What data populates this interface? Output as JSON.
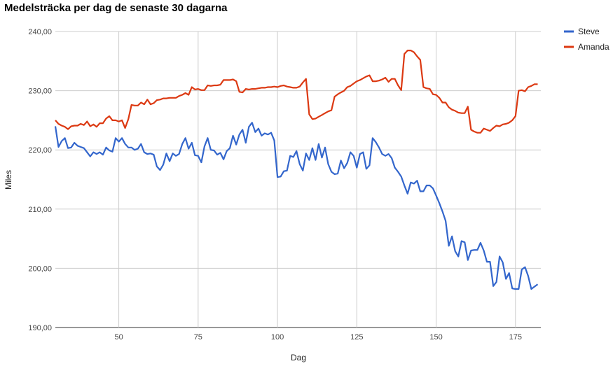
{
  "chart_data": {
    "type": "line",
    "title": "Medelsträcka per dag de senaste 30 dagarna",
    "xlabel": "Dag",
    "ylabel": "Miles",
    "xlim": [
      30,
      183
    ],
    "ylim": [
      190,
      240
    ],
    "x_ticks": [
      50,
      75,
      100,
      125,
      150,
      175
    ],
    "x_tick_labels": [
      "50",
      "75",
      "100",
      "125",
      "150",
      "175"
    ],
    "y_ticks": [
      190,
      200,
      210,
      220,
      230,
      240
    ],
    "y_tick_labels": [
      "190,00",
      "200,00",
      "210,00",
      "220,00",
      "230,00",
      "240,00"
    ],
    "grid": true,
    "legend_position": "right",
    "series": [
      {
        "name": "Steve",
        "color": "#3366cc",
        "points": [
          [
            30,
            224.0
          ],
          [
            31,
            220.5
          ],
          [
            32,
            221.5
          ],
          [
            33,
            222.0
          ],
          [
            34,
            220.3
          ],
          [
            35,
            220.4
          ],
          [
            36,
            221.2
          ],
          [
            37,
            220.7
          ],
          [
            38,
            220.5
          ],
          [
            39,
            220.3
          ],
          [
            40,
            219.6
          ],
          [
            41,
            218.9
          ],
          [
            42,
            219.6
          ],
          [
            43,
            219.3
          ],
          [
            44,
            219.6
          ],
          [
            45,
            219.2
          ],
          [
            46,
            220.4
          ],
          [
            47,
            219.9
          ],
          [
            48,
            219.7
          ],
          [
            49,
            222.0
          ],
          [
            50,
            221.4
          ],
          [
            51,
            222.0
          ],
          [
            52,
            221.0
          ],
          [
            53,
            220.4
          ],
          [
            54,
            220.4
          ],
          [
            55,
            220.0
          ],
          [
            56,
            220.2
          ],
          [
            57,
            221.0
          ],
          [
            58,
            219.6
          ],
          [
            59,
            219.3
          ],
          [
            60,
            219.4
          ],
          [
            61,
            219.2
          ],
          [
            62,
            217.2
          ],
          [
            63,
            216.6
          ],
          [
            64,
            217.5
          ],
          [
            65,
            219.4
          ],
          [
            66,
            218.1
          ],
          [
            67,
            219.4
          ],
          [
            68,
            219.0
          ],
          [
            69,
            219.3
          ],
          [
            70,
            221.0
          ],
          [
            71,
            222.0
          ],
          [
            72,
            220.2
          ],
          [
            73,
            221.2
          ],
          [
            74,
            219.1
          ],
          [
            75,
            219.0
          ],
          [
            76,
            217.9
          ],
          [
            77,
            220.6
          ],
          [
            78,
            222.0
          ],
          [
            79,
            220.0
          ],
          [
            80,
            219.9
          ],
          [
            81,
            219.2
          ],
          [
            82,
            219.5
          ],
          [
            83,
            218.4
          ],
          [
            84,
            219.8
          ],
          [
            85,
            220.3
          ],
          [
            86,
            222.4
          ],
          [
            87,
            220.9
          ],
          [
            88,
            222.6
          ],
          [
            89,
            223.4
          ],
          [
            90,
            221.2
          ],
          [
            91,
            223.9
          ],
          [
            92,
            224.6
          ],
          [
            93,
            223.0
          ],
          [
            94,
            223.6
          ],
          [
            95,
            222.4
          ],
          [
            96,
            222.8
          ],
          [
            97,
            222.6
          ],
          [
            98,
            222.9
          ],
          [
            99,
            221.6
          ],
          [
            100,
            215.4
          ],
          [
            101,
            215.5
          ],
          [
            102,
            216.4
          ],
          [
            103,
            216.5
          ],
          [
            104,
            219.0
          ],
          [
            105,
            218.8
          ],
          [
            106,
            219.8
          ],
          [
            107,
            217.6
          ],
          [
            108,
            216.5
          ],
          [
            109,
            219.4
          ],
          [
            110,
            218.3
          ],
          [
            111,
            220.3
          ],
          [
            112,
            218.3
          ],
          [
            113,
            221.0
          ],
          [
            114,
            218.7
          ],
          [
            115,
            220.4
          ],
          [
            116,
            217.6
          ],
          [
            117,
            216.3
          ],
          [
            118,
            215.9
          ],
          [
            119,
            216.0
          ],
          [
            120,
            218.2
          ],
          [
            121,
            216.9
          ],
          [
            122,
            217.8
          ],
          [
            123,
            219.6
          ],
          [
            124,
            219.0
          ],
          [
            125,
            217.0
          ],
          [
            126,
            219.3
          ],
          [
            127,
            219.6
          ],
          [
            128,
            216.8
          ],
          [
            129,
            217.4
          ],
          [
            130,
            222.0
          ],
          [
            131,
            221.3
          ],
          [
            132,
            220.4
          ],
          [
            133,
            219.3
          ],
          [
            134,
            219.0
          ],
          [
            135,
            219.3
          ],
          [
            136,
            218.6
          ],
          [
            137,
            217.0
          ],
          [
            138,
            216.3
          ],
          [
            139,
            215.5
          ],
          [
            140,
            214.0
          ],
          [
            141,
            212.6
          ],
          [
            142,
            214.5
          ],
          [
            143,
            214.3
          ],
          [
            144,
            214.8
          ],
          [
            145,
            213.0
          ],
          [
            146,
            213.0
          ],
          [
            147,
            214.0
          ],
          [
            148,
            214.0
          ],
          [
            149,
            213.5
          ],
          [
            150,
            212.3
          ],
          [
            151,
            211.0
          ],
          [
            152,
            209.6
          ],
          [
            153,
            208.0
          ],
          [
            154,
            203.8
          ],
          [
            155,
            205.4
          ],
          [
            156,
            202.9
          ],
          [
            157,
            202.0
          ],
          [
            158,
            204.6
          ],
          [
            159,
            204.4
          ],
          [
            160,
            201.4
          ],
          [
            161,
            203.0
          ],
          [
            162,
            203.1
          ],
          [
            163,
            203.1
          ],
          [
            164,
            204.3
          ],
          [
            165,
            203.0
          ],
          [
            166,
            201.1
          ],
          [
            167,
            201.1
          ],
          [
            168,
            197.0
          ],
          [
            169,
            197.7
          ],
          [
            170,
            202.0
          ],
          [
            171,
            201.0
          ],
          [
            172,
            198.2
          ],
          [
            173,
            199.2
          ],
          [
            174,
            196.6
          ],
          [
            175,
            196.5
          ],
          [
            176,
            196.5
          ],
          [
            177,
            199.8
          ],
          [
            178,
            200.2
          ],
          [
            179,
            198.7
          ],
          [
            180,
            196.5
          ],
          [
            181,
            196.9
          ],
          [
            182,
            197.3
          ]
        ]
      },
      {
        "name": "Amanda",
        "color": "#dc3912",
        "points": [
          [
            30,
            225.0
          ],
          [
            31,
            224.4
          ],
          [
            32,
            224.1
          ],
          [
            33,
            223.9
          ],
          [
            34,
            223.5
          ],
          [
            35,
            224.0
          ],
          [
            36,
            224.1
          ],
          [
            37,
            224.1
          ],
          [
            38,
            224.4
          ],
          [
            39,
            224.2
          ],
          [
            40,
            224.8
          ],
          [
            41,
            224.0
          ],
          [
            42,
            224.3
          ],
          [
            43,
            223.9
          ],
          [
            44,
            224.5
          ],
          [
            45,
            224.5
          ],
          [
            46,
            225.3
          ],
          [
            47,
            225.7
          ],
          [
            48,
            225.0
          ],
          [
            49,
            225.0
          ],
          [
            50,
            224.8
          ],
          [
            51,
            225.0
          ],
          [
            52,
            223.7
          ],
          [
            53,
            225.2
          ],
          [
            54,
            227.6
          ],
          [
            55,
            227.5
          ],
          [
            56,
            227.5
          ],
          [
            57,
            228.0
          ],
          [
            58,
            227.7
          ],
          [
            59,
            228.5
          ],
          [
            60,
            227.7
          ],
          [
            61,
            227.9
          ],
          [
            62,
            228.4
          ],
          [
            63,
            228.5
          ],
          [
            64,
            228.7
          ],
          [
            65,
            228.7
          ],
          [
            66,
            228.8
          ],
          [
            67,
            228.8
          ],
          [
            68,
            228.8
          ],
          [
            69,
            229.1
          ],
          [
            70,
            229.3
          ],
          [
            71,
            229.6
          ],
          [
            72,
            229.3
          ],
          [
            73,
            230.6
          ],
          [
            74,
            230.2
          ],
          [
            75,
            230.3
          ],
          [
            76,
            230.1
          ],
          [
            77,
            230.1
          ],
          [
            78,
            230.9
          ],
          [
            79,
            230.8
          ],
          [
            80,
            230.9
          ],
          [
            81,
            230.9
          ],
          [
            82,
            231.0
          ],
          [
            83,
            231.8
          ],
          [
            84,
            231.8
          ],
          [
            85,
            231.8
          ],
          [
            86,
            231.9
          ],
          [
            87,
            231.6
          ],
          [
            88,
            229.8
          ],
          [
            89,
            229.7
          ],
          [
            90,
            230.3
          ],
          [
            91,
            230.2
          ],
          [
            92,
            230.3
          ],
          [
            93,
            230.3
          ],
          [
            94,
            230.4
          ],
          [
            95,
            230.5
          ],
          [
            96,
            230.5
          ],
          [
            97,
            230.6
          ],
          [
            98,
            230.6
          ],
          [
            99,
            230.7
          ],
          [
            100,
            230.6
          ],
          [
            101,
            230.8
          ],
          [
            102,
            230.9
          ],
          [
            103,
            230.7
          ],
          [
            104,
            230.6
          ],
          [
            105,
            230.5
          ],
          [
            106,
            230.5
          ],
          [
            107,
            230.7
          ],
          [
            108,
            231.4
          ],
          [
            109,
            232.0
          ],
          [
            110,
            226.0
          ],
          [
            111,
            225.2
          ],
          [
            112,
            225.3
          ],
          [
            113,
            225.6
          ],
          [
            114,
            225.9
          ],
          [
            115,
            226.2
          ],
          [
            116,
            226.5
          ],
          [
            117,
            226.7
          ],
          [
            118,
            229.0
          ],
          [
            119,
            229.4
          ],
          [
            120,
            229.7
          ],
          [
            121,
            230.0
          ],
          [
            122,
            230.6
          ],
          [
            123,
            230.8
          ],
          [
            124,
            231.2
          ],
          [
            125,
            231.6
          ],
          [
            126,
            231.8
          ],
          [
            127,
            232.1
          ],
          [
            128,
            232.4
          ],
          [
            129,
            232.6
          ],
          [
            130,
            231.6
          ],
          [
            131,
            231.6
          ],
          [
            132,
            231.7
          ],
          [
            133,
            231.9
          ],
          [
            134,
            232.2
          ],
          [
            135,
            231.5
          ],
          [
            136,
            232.0
          ],
          [
            137,
            232.0
          ],
          [
            138,
            230.9
          ],
          [
            139,
            230.1
          ],
          [
            140,
            236.2
          ],
          [
            141,
            236.8
          ],
          [
            142,
            236.8
          ],
          [
            143,
            236.5
          ],
          [
            144,
            235.8
          ],
          [
            145,
            235.2
          ],
          [
            146,
            230.6
          ],
          [
            147,
            230.4
          ],
          [
            148,
            230.3
          ],
          [
            149,
            229.4
          ],
          [
            150,
            229.3
          ],
          [
            151,
            228.8
          ],
          [
            152,
            228.0
          ],
          [
            153,
            228.0
          ],
          [
            154,
            227.2
          ],
          [
            155,
            226.8
          ],
          [
            156,
            226.6
          ],
          [
            157,
            226.3
          ],
          [
            158,
            226.2
          ],
          [
            159,
            226.2
          ],
          [
            160,
            227.3
          ],
          [
            161,
            223.4
          ],
          [
            162,
            223.1
          ],
          [
            163,
            222.9
          ],
          [
            164,
            222.9
          ],
          [
            165,
            223.6
          ],
          [
            166,
            223.4
          ],
          [
            167,
            223.2
          ],
          [
            168,
            223.7
          ],
          [
            169,
            224.1
          ],
          [
            170,
            224.0
          ],
          [
            171,
            224.3
          ],
          [
            172,
            224.4
          ],
          [
            173,
            224.6
          ],
          [
            174,
            225.0
          ],
          [
            175,
            225.7
          ],
          [
            176,
            230.0
          ],
          [
            177,
            230.1
          ],
          [
            178,
            229.9
          ],
          [
            179,
            230.6
          ],
          [
            180,
            230.8
          ],
          [
            181,
            231.1
          ],
          [
            182,
            231.1
          ]
        ]
      }
    ]
  }
}
